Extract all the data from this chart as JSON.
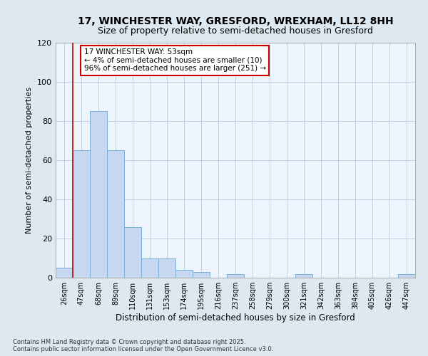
{
  "title1": "17, WINCHESTER WAY, GRESFORD, WREXHAM, LL12 8HH",
  "title2": "Size of property relative to semi-detached houses in Gresford",
  "xlabel": "Distribution of semi-detached houses by size in Gresford",
  "ylabel": "Number of semi-detached properties",
  "categories": [
    "26sqm",
    "47sqm",
    "68sqm",
    "89sqm",
    "110sqm",
    "131sqm",
    "153sqm",
    "174sqm",
    "195sqm",
    "216sqm",
    "237sqm",
    "258sqm",
    "279sqm",
    "300sqm",
    "321sqm",
    "342sqm",
    "363sqm",
    "384sqm",
    "405sqm",
    "426sqm",
    "447sqm"
  ],
  "values": [
    5,
    65,
    85,
    65,
    26,
    10,
    10,
    4,
    3,
    0,
    2,
    0,
    0,
    0,
    2,
    0,
    0,
    0,
    0,
    0,
    2
  ],
  "bar_color": "#c5d8f0",
  "bar_edge_color": "#7bafd4",
  "vline_x_index": 1,
  "vline_color": "#cc0000",
  "annotation_text": "17 WINCHESTER WAY: 53sqm\n← 4% of semi-detached houses are smaller (10)\n96% of semi-detached houses are larger (251) →",
  "annotation_box_color": "#ffffff",
  "annotation_box_edge_color": "#cc0000",
  "ylim": [
    0,
    120
  ],
  "yticks": [
    0,
    20,
    40,
    60,
    80,
    100,
    120
  ],
  "footnote": "Contains HM Land Registry data © Crown copyright and database right 2025.\nContains public sector information licensed under the Open Government Licence v3.0.",
  "bg_color": "#dde8f0",
  "plot_bg_color": "#eef4fb",
  "title1_fontsize": 10,
  "title2_fontsize": 9,
  "annot_fontsize": 7.5,
  "ylabel_fontsize": 8,
  "xlabel_fontsize": 8.5,
  "ytick_fontsize": 8,
  "xtick_fontsize": 7,
  "footnote_fontsize": 6
}
